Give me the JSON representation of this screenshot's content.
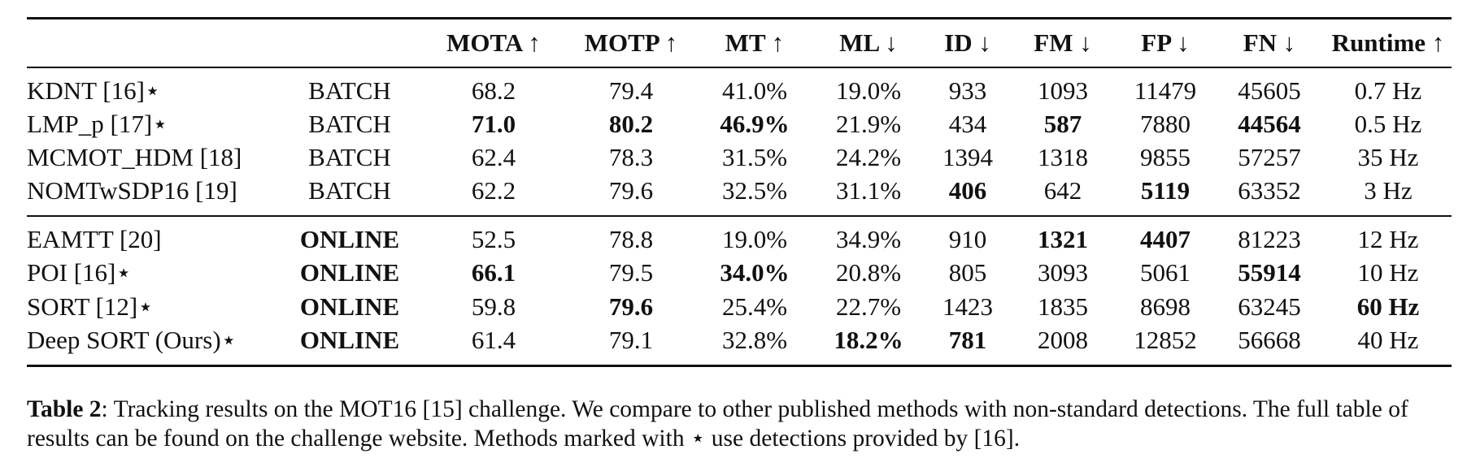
{
  "table": {
    "headers": [
      "",
      "",
      "MOTA ↑",
      "MOTP ↑",
      "MT ↑",
      "ML ↓",
      "ID ↓",
      "FM ↓",
      "FP ↓",
      "FN ↓",
      "Runtime ↑"
    ],
    "groups": [
      [
        {
          "cells": [
            "KDNT [16]⋆",
            "BATCH",
            "68.2",
            "79.4",
            "41.0%",
            "19.0%",
            "933",
            "1093",
            "11479",
            "45605",
            "0.7 Hz"
          ],
          "bold": []
        },
        {
          "cells": [
            "LMP_p [17]⋆",
            "BATCH",
            "71.0",
            "80.2",
            "46.9%",
            "21.9%",
            "434",
            "587",
            "7880",
            "44564",
            "0.5 Hz"
          ],
          "bold": [
            2,
            3,
            4,
            7,
            9
          ]
        },
        {
          "cells": [
            "MCMOT_HDM [18]",
            "BATCH",
            "62.4",
            "78.3",
            "31.5%",
            "24.2%",
            "1394",
            "1318",
            "9855",
            "57257",
            "35 Hz"
          ],
          "bold": []
        },
        {
          "cells": [
            "NOMTwSDP16 [19]",
            "BATCH",
            "62.2",
            "79.6",
            "32.5%",
            "31.1%",
            "406",
            "642",
            "5119",
            "63352",
            "3 Hz"
          ],
          "bold": [
            6,
            8
          ]
        }
      ],
      [
        {
          "cells": [
            "EAMTT [20]",
            "ONLINE",
            "52.5",
            "78.8",
            "19.0%",
            "34.9%",
            "910",
            "1321",
            "4407",
            "81223",
            "12 Hz"
          ],
          "bold": [
            1,
            7,
            8
          ]
        },
        {
          "cells": [
            "POI [16]⋆",
            "ONLINE",
            "66.1",
            "79.5",
            "34.0%",
            "20.8%",
            "805",
            "3093",
            "5061",
            "55914",
            "10 Hz"
          ],
          "bold": [
            1,
            2,
            4,
            9
          ]
        },
        {
          "cells": [
            "SORT [12]⋆",
            "ONLINE",
            "59.8",
            "79.6",
            "25.4%",
            "22.7%",
            "1423",
            "1835",
            "8698",
            "63245",
            "60 Hz"
          ],
          "bold": [
            1,
            3,
            10
          ]
        },
        {
          "cells": [
            "Deep SORT (Ours)⋆",
            "ONLINE",
            "61.4",
            "79.1",
            "32.8%",
            "18.2%",
            "781",
            "2008",
            "12852",
            "56668",
            "40 Hz"
          ],
          "bold": [
            1,
            5,
            6
          ]
        }
      ]
    ]
  },
  "caption": {
    "label": "Table 2",
    "text": ": Tracking results on the MOT16 [15] challenge. We compare to other published methods with non-standard detections. The full table of results can be found on the challenge website. Methods marked with ⋆ use detections provided by [16]."
  }
}
